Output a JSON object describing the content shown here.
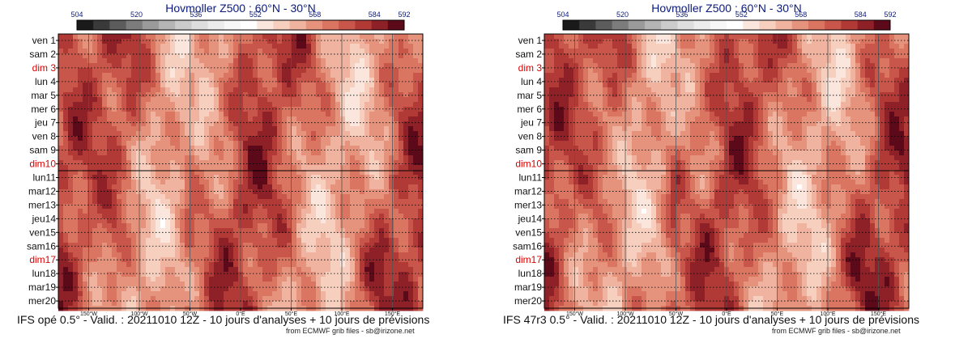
{
  "colors": {
    "sunday": "#dd0000",
    "title": "#0b1a7a",
    "palette": [
      "#1a1a1a",
      "#3a3a3a",
      "#5c5c5c",
      "#7c7c7c",
      "#9a9a9a",
      "#b4b4b4",
      "#cbcbcb",
      "#dedede",
      "#ececec",
      "#f7f7f7",
      "#ffffff",
      "#fbe6de",
      "#f6cfbf",
      "#efb3a0",
      "#e6937d",
      "#d97561",
      "#c9564a",
      "#b23a36",
      "#8e2128",
      "#5c0a1a"
    ]
  },
  "panels": [
    {
      "title": "Hovmoller Z500 : 60°N - 30°N",
      "colorbar_labels": [
        "504",
        "520",
        "536",
        "552",
        "568",
        "584",
        "592"
      ],
      "days": [
        "ven 1",
        "sam 2",
        "dim 3",
        "lun 4",
        "mar 5",
        "mer 6",
        "jeu 7",
        "ven 8",
        "sam 9",
        "dim10",
        "lun11",
        "mar12",
        "mer13",
        "jeu14",
        "ven15",
        "sam16",
        "dim17",
        "lun18",
        "mar19",
        "mer20"
      ],
      "lon_labels": [
        "150°W",
        "100°W",
        "50°W",
        "0°E",
        "50°E",
        "100°E",
        "150°E"
      ],
      "caption": "IFS opé 0.5° - Valid. : 20211010 12Z - 10 jours d'analyses + 10 jours de prévisions",
      "source": "from ECMWF grib files - sb@irizone.net"
    },
    {
      "title": "Hovmoller Z500 : 60°N - 30°N",
      "colorbar_labels": [
        "504",
        "520",
        "536",
        "552",
        "568",
        "584",
        "592"
      ],
      "days": [
        "ven 1",
        "sam 2",
        "dim 3",
        "lun 4",
        "mar 5",
        "mer 6",
        "jeu 7",
        "ven 8",
        "sam 9",
        "dim10",
        "lun11",
        "mar12",
        "mer13",
        "jeu14",
        "ven15",
        "sam16",
        "dim17",
        "lun18",
        "mar19",
        "mer20"
      ],
      "lon_labels": [
        "150°W",
        "100°W",
        "50°W",
        "0°E",
        "50°E",
        "100°E",
        "150°E"
      ],
      "caption": "IFS 47r3 0.5° - Valid. : 20211010 12Z - 10 jours d'analyses + 10 jours de prévisions",
      "source": "from ECMWF grib files - sb@irizone.net"
    }
  ],
  "chart_data": [
    {
      "type": "heatmap",
      "title": "Hovmoller Z500 : 60°N - 30°N",
      "colorbar_ticks": [
        504,
        520,
        536,
        552,
        568,
        584,
        592
      ],
      "y_categories": [
        "ven 1",
        "sam 2",
        "dim 3",
        "lun 4",
        "mar 5",
        "mer 6",
        "jeu 7",
        "ven 8",
        "sam 9",
        "dim10",
        "lun11",
        "mar12",
        "mer13",
        "jeu14",
        "ven15",
        "sam16",
        "dim17",
        "lun18",
        "mar19",
        "mer20"
      ],
      "x_ticks": [
        "150°W",
        "100°W",
        "50°W",
        "0°E",
        "50°E",
        "100°E",
        "150°E"
      ],
      "xlim": [
        -180,
        180
      ],
      "grid": true
    },
    {
      "type": "heatmap",
      "title": "Hovmoller Z500 : 60°N - 30°N",
      "colorbar_ticks": [
        504,
        520,
        536,
        552,
        568,
        584,
        592
      ],
      "y_categories": [
        "ven 1",
        "sam 2",
        "dim 3",
        "lun 4",
        "mar 5",
        "mer 6",
        "jeu 7",
        "ven 8",
        "sam 9",
        "dim10",
        "lun11",
        "mar12",
        "mer13",
        "jeu14",
        "ven15",
        "sam16",
        "dim17",
        "lun18",
        "mar19",
        "mer20"
      ],
      "x_ticks": [
        "150°W",
        "100°W",
        "50°W",
        "0°E",
        "50°E",
        "100°E",
        "150°E"
      ],
      "xlim": [
        -180,
        180
      ],
      "grid": true
    }
  ]
}
